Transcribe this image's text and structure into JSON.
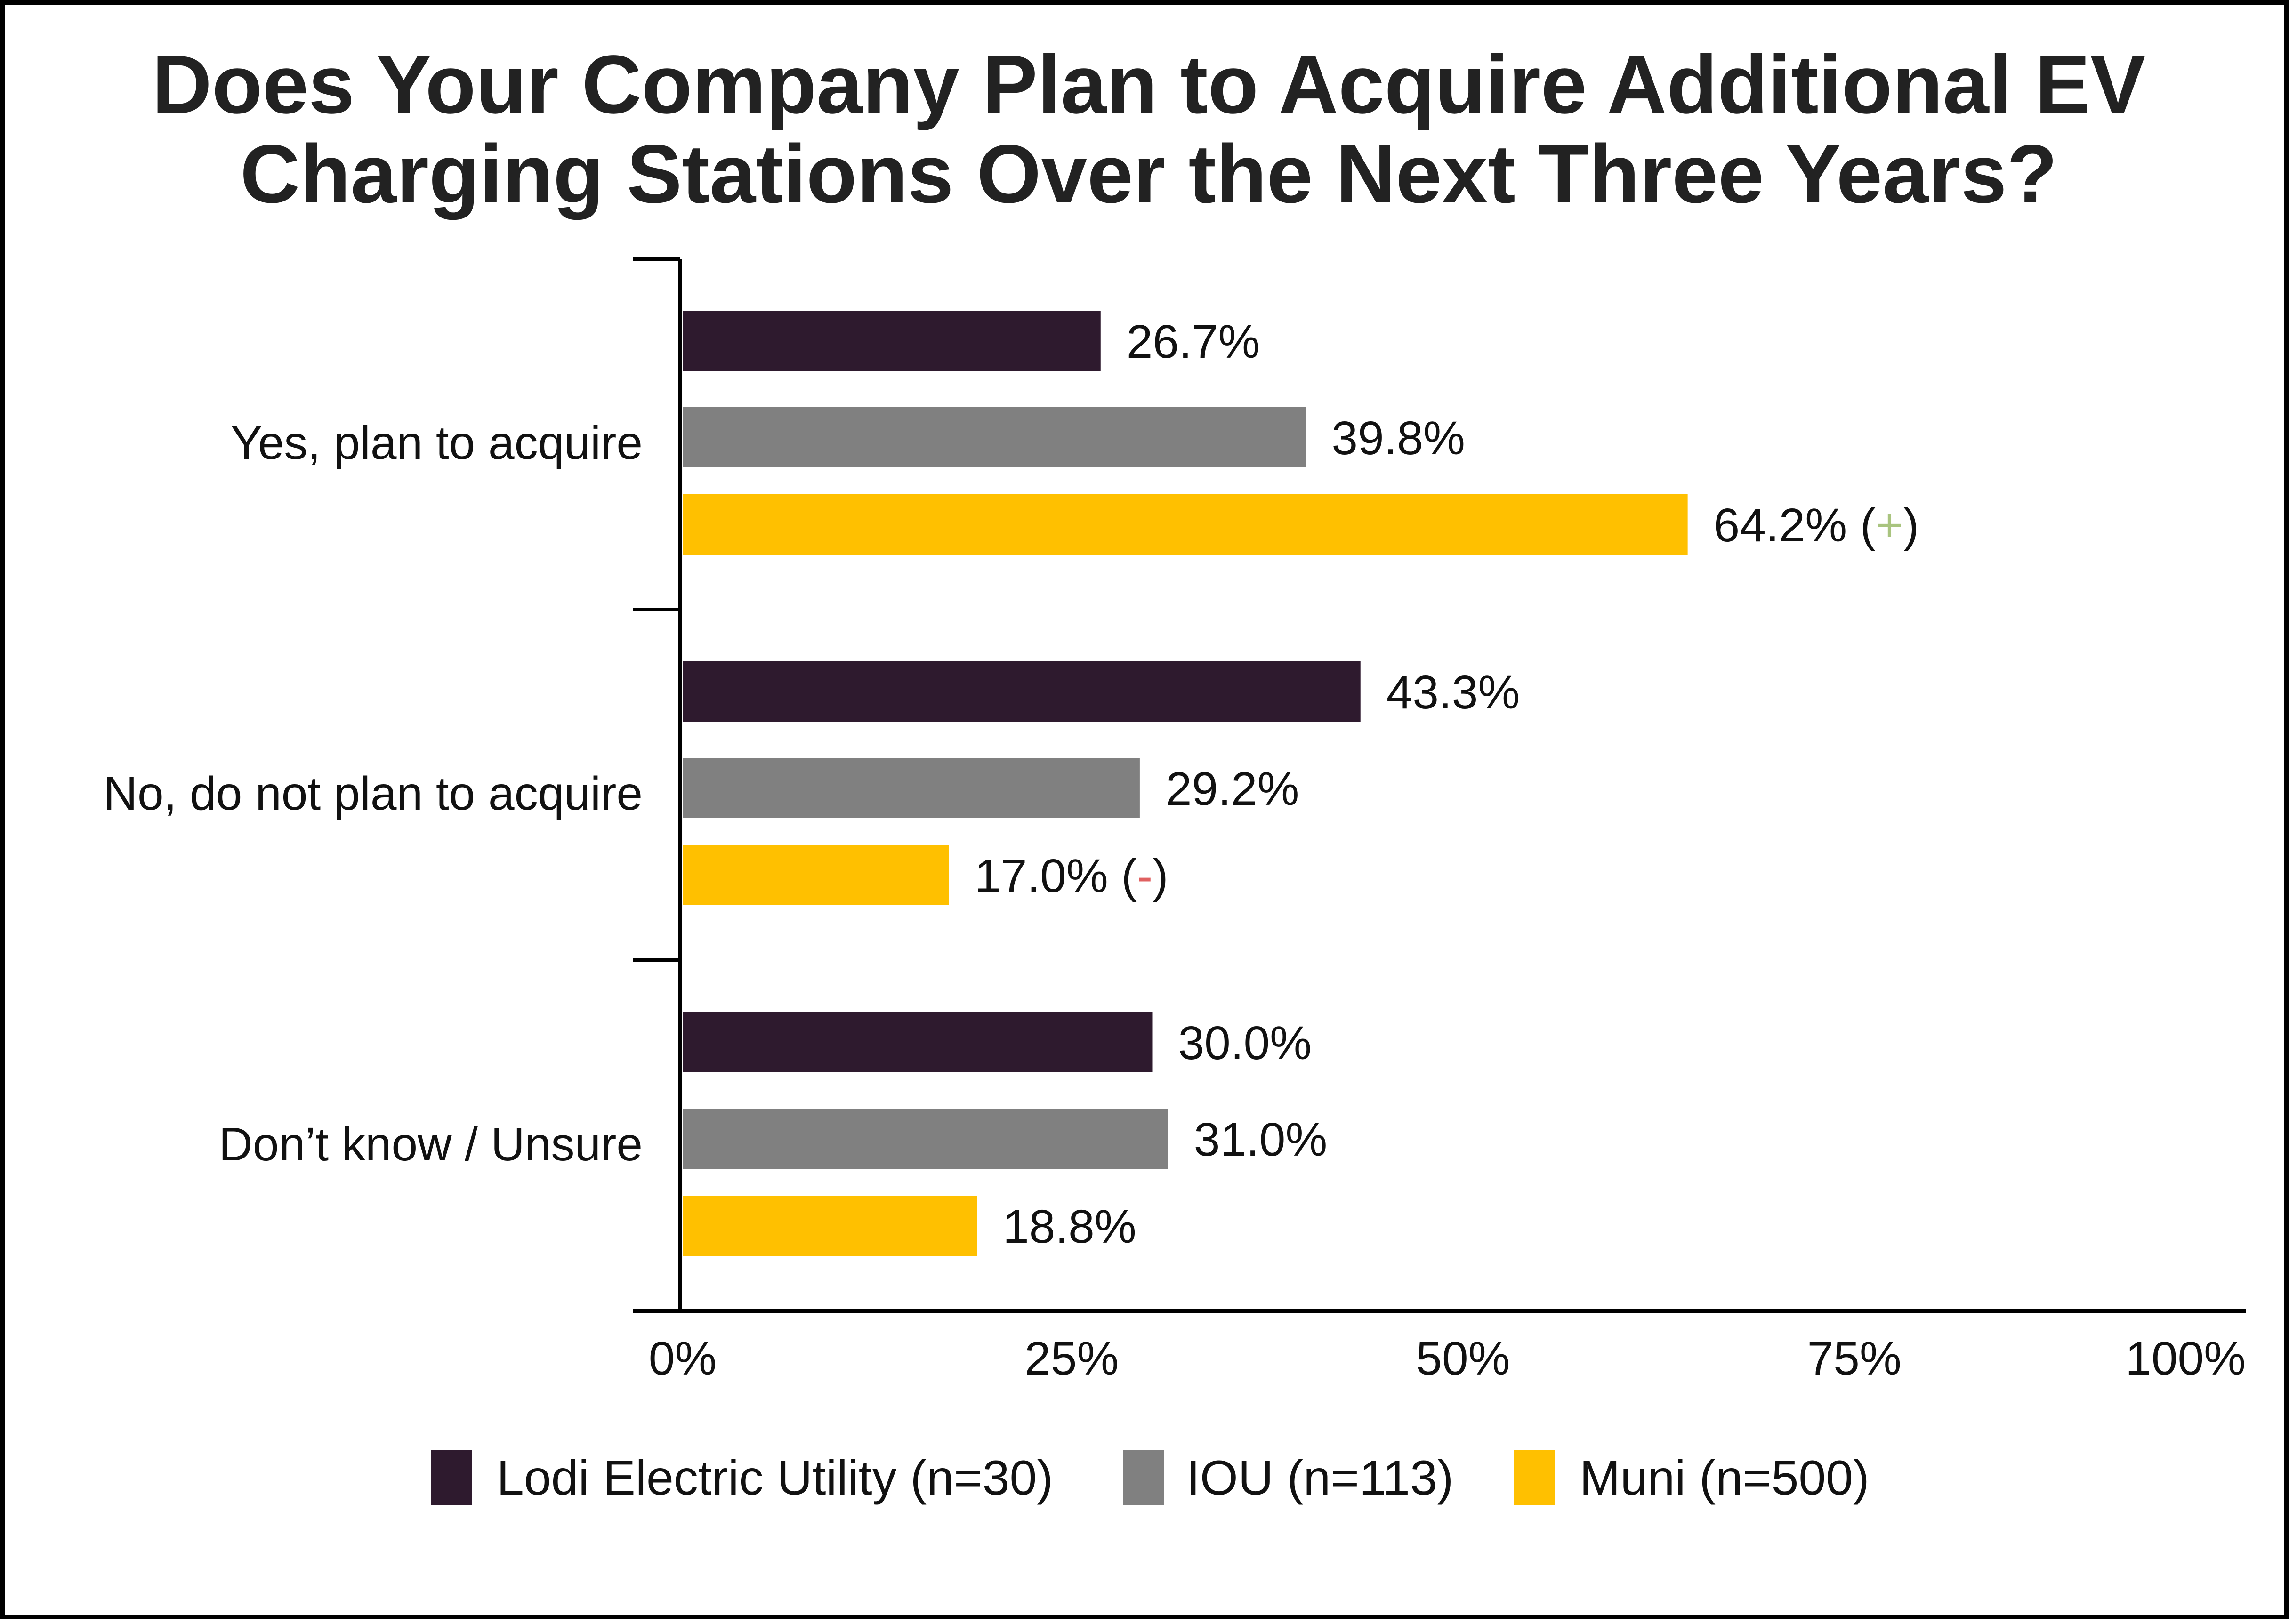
{
  "chart_data": {
    "type": "bar",
    "orientation": "horizontal",
    "title_lines": [
      "Does Your Company Plan to Acquire Additional EV",
      "Charging Stations Over the Next Three Years?"
    ],
    "categories": [
      "Yes, plan to acquire",
      "No, do not plan to acquire",
      "Don’t know / Unsure"
    ],
    "series": [
      {
        "name": "Lodi Electric Utility (n=30)",
        "color": "#2e1a2e",
        "values": [
          26.7,
          43.3,
          30.0
        ],
        "labels": [
          "26.7%",
          "43.3%",
          "30.0%"
        ],
        "marks": [
          "",
          "",
          ""
        ]
      },
      {
        "name": "IOU (n=113)",
        "color": "#808080",
        "values": [
          39.8,
          29.2,
          31.0
        ],
        "labels": [
          "39.8%",
          "29.2%",
          "31.0%"
        ],
        "marks": [
          "",
          "",
          ""
        ]
      },
      {
        "name": "Muni (n=500)",
        "color": "#ffc000",
        "values": [
          64.2,
          17.0,
          18.8
        ],
        "labels": [
          "64.2%",
          "17.0%",
          "18.8%"
        ],
        "marks": [
          "+",
          "-",
          ""
        ]
      }
    ],
    "mark_colors": {
      "+": "#a9c47f",
      "-": "#e06060"
    },
    "xlim": [
      0,
      100
    ],
    "x_ticks": [
      0,
      25,
      50,
      75,
      100
    ],
    "x_tick_labels": [
      "0%",
      "25%",
      "50%",
      "75%",
      "100%"
    ],
    "legend_position": "bottom",
    "grid": false
  }
}
